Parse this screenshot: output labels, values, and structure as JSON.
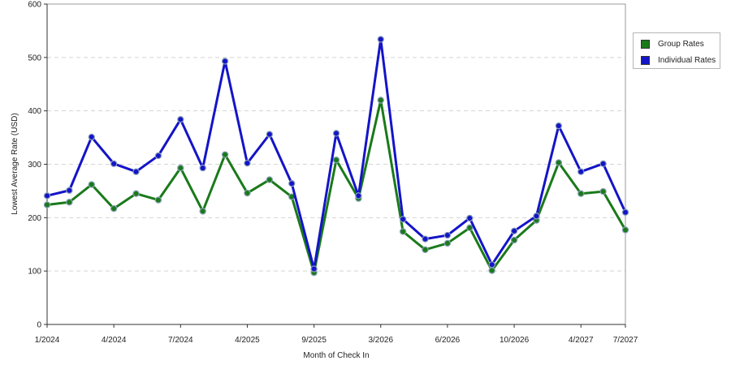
{
  "chart_data": {
    "type": "line",
    "xlabel": "Month of Check In",
    "ylabel": "Lowest Average Rate (USD)",
    "ylim": [
      0,
      600
    ],
    "yticks": [
      0,
      100,
      200,
      300,
      400,
      500,
      600
    ],
    "grid": "horizontal-dashed",
    "legend_position": "right",
    "x_tick_labels": [
      {
        "index": 0,
        "label": "1/2024"
      },
      {
        "index": 3,
        "label": "4/2024"
      },
      {
        "index": 6,
        "label": "7/2024"
      },
      {
        "index": 9,
        "label": "4/2025"
      },
      {
        "index": 12,
        "label": "9/2025"
      },
      {
        "index": 15,
        "label": "3/2026"
      },
      {
        "index": 18,
        "label": "6/2026"
      },
      {
        "index": 21,
        "label": "10/2026"
      },
      {
        "index": 24,
        "label": "4/2027"
      },
      {
        "index": 26,
        "label": "7/2027"
      }
    ],
    "series": [
      {
        "name": "Group Rates",
        "color": "#1a7a1a",
        "values": [
          224,
          229,
          262,
          217,
          245,
          233,
          293,
          212,
          318,
          246,
          271,
          239,
          97,
          308,
          236,
          420,
          174,
          140,
          152,
          181,
          101,
          158,
          195,
          303,
          245,
          249,
          177
        ]
      },
      {
        "name": "Individual Rates",
        "color": "#1414c8",
        "values": [
          241,
          251,
          351,
          301,
          286,
          316,
          384,
          293,
          493,
          302,
          356,
          264,
          104,
          358,
          241,
          534,
          197,
          160,
          167,
          199,
          112,
          175,
          203,
          372,
          286,
          301,
          210
        ]
      }
    ]
  }
}
